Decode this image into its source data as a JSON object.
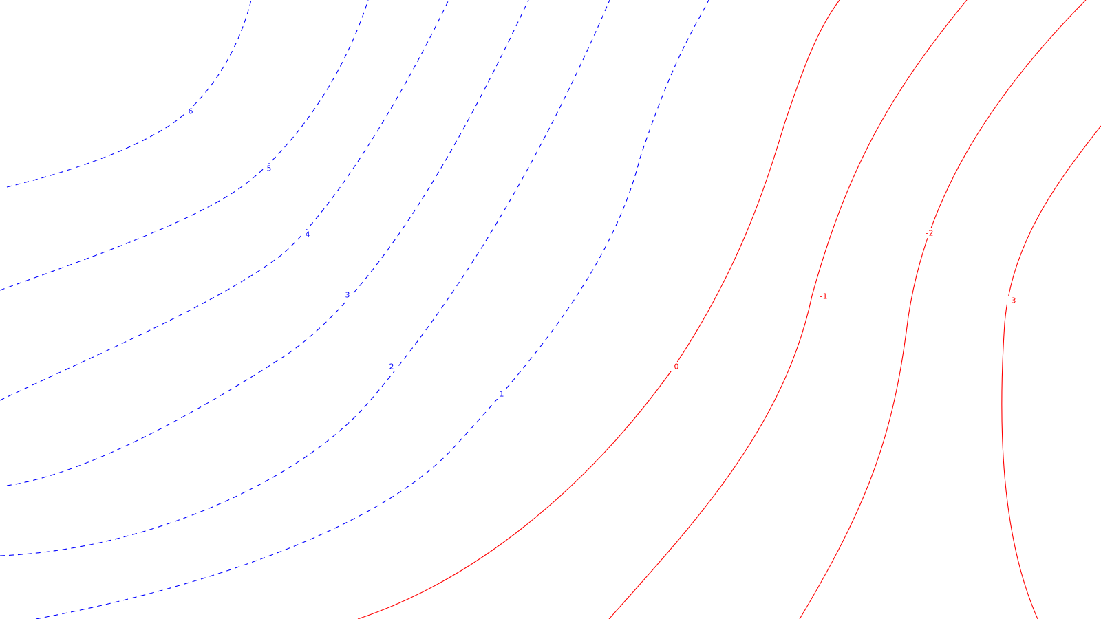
{
  "chart_data": {
    "type": "contour",
    "title": "",
    "xlabel": "",
    "ylabel": "",
    "grid": false,
    "legend": "none",
    "style": {
      "positive": {
        "color": "#0000ff",
        "dash": "dashed"
      },
      "nonpositive": {
        "color": "#ff0000",
        "dash": "solid"
      }
    },
    "levels": [
      {
        "value": 6,
        "label": "6"
      },
      {
        "value": 5,
        "label": "5"
      },
      {
        "value": 4,
        "label": "4"
      },
      {
        "value": 3,
        "label": "3"
      },
      {
        "value": 2,
        "label": "2"
      },
      {
        "value": 1,
        "label": "1"
      },
      {
        "value": 0,
        "label": "0"
      },
      {
        "value": -1,
        "label": "-1"
      },
      {
        "value": -2,
        "label": "-2"
      },
      {
        "value": -3,
        "label": "-3"
      }
    ]
  }
}
